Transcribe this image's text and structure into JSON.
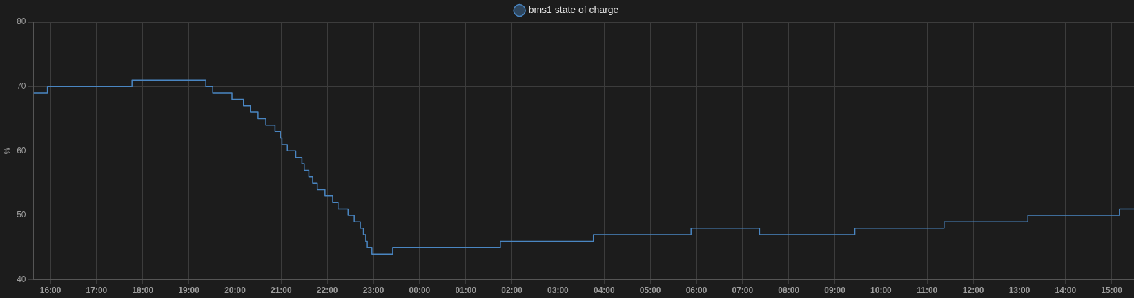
{
  "chart_data": {
    "type": "step",
    "ylabel": "%",
    "x": [
      "--01-01T15:38",
      "--01-01T15:56",
      "--01-01T17:46",
      "--01-01T19:22",
      "--01-01T19:31",
      "--01-01T19:56",
      "--01-01T20:11",
      "--01-01T20:20",
      "--01-01T20:30",
      "--01-01T20:40",
      "--01-01T20:52",
      "--01-01T20:59",
      "--01-01T21:01",
      "--01-01T21:08",
      "--01-01T21:19",
      "--01-01T21:27",
      "--01-01T21:30",
      "--01-01T21:36",
      "--01-01T21:41",
      "--01-01T21:47",
      "--01-01T21:57",
      "--01-01T22:07",
      "--01-01T22:14",
      "--01-01T22:27",
      "--01-01T22:35",
      "--01-01T22:43",
      "--01-01T22:47",
      "--01-01T22:50",
      "--01-01T22:52",
      "--01-01T22:58",
      "--01-01T23:25",
      "--01-02T01:45",
      "--01-02T03:46",
      "--01-02T05:53",
      "--01-02T07:22",
      "--01-02T09:26",
      "--01-02T11:22",
      "--01-02T13:11",
      "--01-02T15:10",
      "--01-02T15:29"
    ],
    "series": [
      {
        "name": "bms1 state of charge",
        "color": "#4a86c2",
        "values": [
          69,
          70,
          71,
          70,
          69,
          68,
          67,
          66,
          65,
          64,
          63,
          62,
          61,
          60,
          59,
          58,
          57,
          56,
          55,
          54,
          53,
          52,
          51,
          50,
          49,
          48,
          47,
          46,
          45,
          44,
          45,
          46,
          47,
          48,
          47,
          48,
          49,
          50,
          51,
          51
        ]
      }
    ],
    "xlim": [
      "--01-01T15:38",
      "--01-02T15:29"
    ],
    "xticks": [
      {
        "value": "--01-01T16:00",
        "label": "16:00"
      },
      {
        "value": "--01-01T17:00",
        "label": "17:00"
      },
      {
        "value": "--01-01T18:00",
        "label": "18:00"
      },
      {
        "value": "--01-01T19:00",
        "label": "19:00"
      },
      {
        "value": "--01-01T20:00",
        "label": "20:00"
      },
      {
        "value": "--01-01T21:00",
        "label": "21:00"
      },
      {
        "value": "--01-01T22:00",
        "label": "22:00"
      },
      {
        "value": "--01-01T23:00",
        "label": "23:00"
      },
      {
        "value": "--01-02T00:00",
        "label": "00:00"
      },
      {
        "value": "--01-02T01:00",
        "label": "01:00"
      },
      {
        "value": "--01-02T02:00",
        "label": "02:00"
      },
      {
        "value": "--01-02T03:00",
        "label": "03:00"
      },
      {
        "value": "--01-02T04:00",
        "label": "04:00"
      },
      {
        "value": "--01-02T05:00",
        "label": "05:00"
      },
      {
        "value": "--01-02T06:00",
        "label": "06:00"
      },
      {
        "value": "--01-02T07:00",
        "label": "07:00"
      },
      {
        "value": "--01-02T08:00",
        "label": "08:00"
      },
      {
        "value": "--01-02T09:00",
        "label": "09:00"
      },
      {
        "value": "--01-02T10:00",
        "label": "10:00"
      },
      {
        "value": "--01-02T11:00",
        "label": "11:00"
      },
      {
        "value": "--01-02T12:00",
        "label": "12:00"
      },
      {
        "value": "--01-02T13:00",
        "label": "13:00"
      },
      {
        "value": "--01-02T14:00",
        "label": "14:00"
      },
      {
        "value": "--01-02T15:00",
        "label": "15:00"
      }
    ],
    "ylim": [
      40,
      80
    ],
    "yticks": [
      40,
      50,
      60,
      70,
      80
    ],
    "grid": true,
    "legend": "top"
  }
}
